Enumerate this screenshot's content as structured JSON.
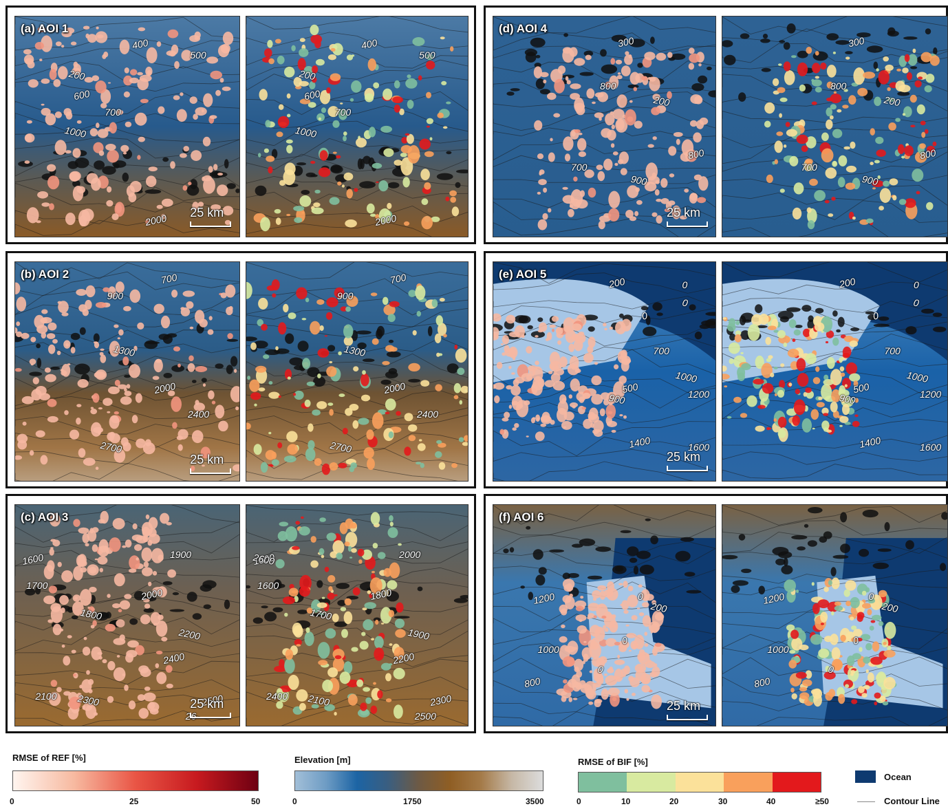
{
  "panels": [
    {
      "id": "a",
      "label": "(a) AOI 1",
      "scale": "25 km",
      "contours_left": [
        "400",
        "500",
        "200",
        "600",
        "700",
        "1000",
        "2000"
      ],
      "contours_right": [
        "400",
        "500",
        "200",
        "600",
        "700",
        "1000",
        "2000"
      ]
    },
    {
      "id": "b",
      "label": "(b) AOI 2",
      "scale": "25 km",
      "contours_left": [
        "700",
        "900",
        "1300",
        "2000",
        "2400",
        "2700"
      ],
      "contours_right": [
        "700",
        "900",
        "1300",
        "2000",
        "2400",
        "2700"
      ]
    },
    {
      "id": "c",
      "label": "(c) AOI 3",
      "scale": "25 km",
      "contours_left": [
        "1600",
        "1700",
        "1800",
        "2000",
        "1900",
        "2200",
        "2400",
        "2100",
        "2300",
        "2500",
        "26"
      ],
      "contours_right": [
        "1500",
        "1600",
        "1700",
        "1800",
        "2000",
        "1900",
        "2200",
        "2400",
        "2100",
        "2300",
        "2500",
        "2600"
      ]
    },
    {
      "id": "d",
      "label": "(d) AOI 4",
      "scale": "25 km",
      "contours_left": [
        "300",
        "800",
        "200",
        "800",
        "700",
        "900"
      ],
      "contours_right": [
        "300",
        "800",
        "200",
        "800",
        "700",
        "900"
      ]
    },
    {
      "id": "e",
      "label": "(e) AOI 5",
      "scale": "25 km",
      "contours_left": [
        "200",
        "0",
        "0",
        "0",
        "700",
        "1000",
        "500",
        "1200",
        "900",
        "1400",
        "1600"
      ],
      "contours_right": [
        "200",
        "0",
        "0",
        "0",
        "700",
        "1000",
        "500",
        "1200",
        "900",
        "1400",
        "1600"
      ]
    },
    {
      "id": "f",
      "label": "(f) AOI 6",
      "scale": "25 km",
      "contours_left": [
        "1200",
        "0",
        "200",
        "0",
        "1000",
        "0",
        "800"
      ],
      "contours_right": [
        "1200",
        "0",
        "200",
        "0",
        "1000",
        "0",
        "800"
      ]
    }
  ],
  "legend": {
    "ref": {
      "title": "RMSE of REF [%]",
      "ticks": [
        "0",
        "25",
        "50"
      ],
      "colors": [
        "#fff5ef",
        "#f7b9a0",
        "#e95545",
        "#c71a1f",
        "#6e0012"
      ]
    },
    "elevation": {
      "title": "Elevation [m]",
      "ticks": [
        "0",
        "1750",
        "3500"
      ],
      "colors": [
        "#a2bfd8",
        "#6e9cc4",
        "#1c64a4",
        "#3a5e80",
        "#6e5a44",
        "#8f5e24",
        "#a47a48",
        "#c6b8a6",
        "#dcdcdc"
      ]
    },
    "bif": {
      "title": "RMSE of BIF [%]",
      "ticks": [
        "0",
        "10",
        "20",
        "30",
        "40",
        "≥50"
      ],
      "colors": [
        "#7fbf9e",
        "#d8eaa0",
        "#fbe19a",
        "#f9a05c",
        "#e3191c"
      ]
    },
    "ocean": "Ocean",
    "contour": "Contour Line",
    "ocean_color": "#0e3a70"
  }
}
